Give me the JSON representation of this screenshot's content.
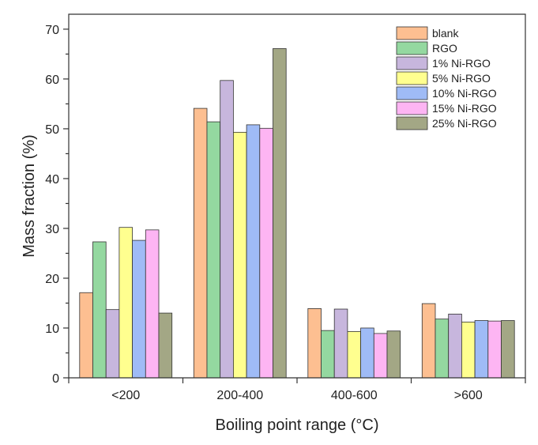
{
  "chart_data": {
    "type": "bar",
    "title": "",
    "xlabel": "Boiling point range (°C)",
    "ylabel": "Mass fraction (%)",
    "ylim": [
      0,
      73
    ],
    "yticks": [
      0,
      10,
      20,
      30,
      40,
      50,
      60,
      70
    ],
    "categories": [
      "<200",
      "200-400",
      "400-600",
      ">600"
    ],
    "legend_position": "top-right",
    "grid": false,
    "series": [
      {
        "name": "blank",
        "color": "#FDBF91",
        "values": [
          17.1,
          54.1,
          13.9,
          14.9
        ]
      },
      {
        "name": "RGO",
        "color": "#94D8A0",
        "values": [
          27.3,
          51.4,
          9.5,
          11.8
        ]
      },
      {
        "name": "1% Ni-RGO",
        "color": "#C7B6DD",
        "values": [
          13.7,
          59.7,
          13.8,
          12.8
        ]
      },
      {
        "name": "5% Ni-RGO",
        "color": "#FFFF8F",
        "values": [
          30.2,
          49.3,
          9.3,
          11.2
        ]
      },
      {
        "name": "10% Ni-RGO",
        "color": "#9FBBF6",
        "values": [
          27.6,
          50.8,
          10.0,
          11.5
        ]
      },
      {
        "name": "15% Ni-RGO",
        "color": "#FDB5F3",
        "values": [
          29.7,
          50.1,
          8.9,
          11.4
        ]
      },
      {
        "name": "25% Ni-RGO",
        "color": "#A3A785",
        "values": [
          13.0,
          66.1,
          9.4,
          11.5
        ]
      }
    ]
  }
}
